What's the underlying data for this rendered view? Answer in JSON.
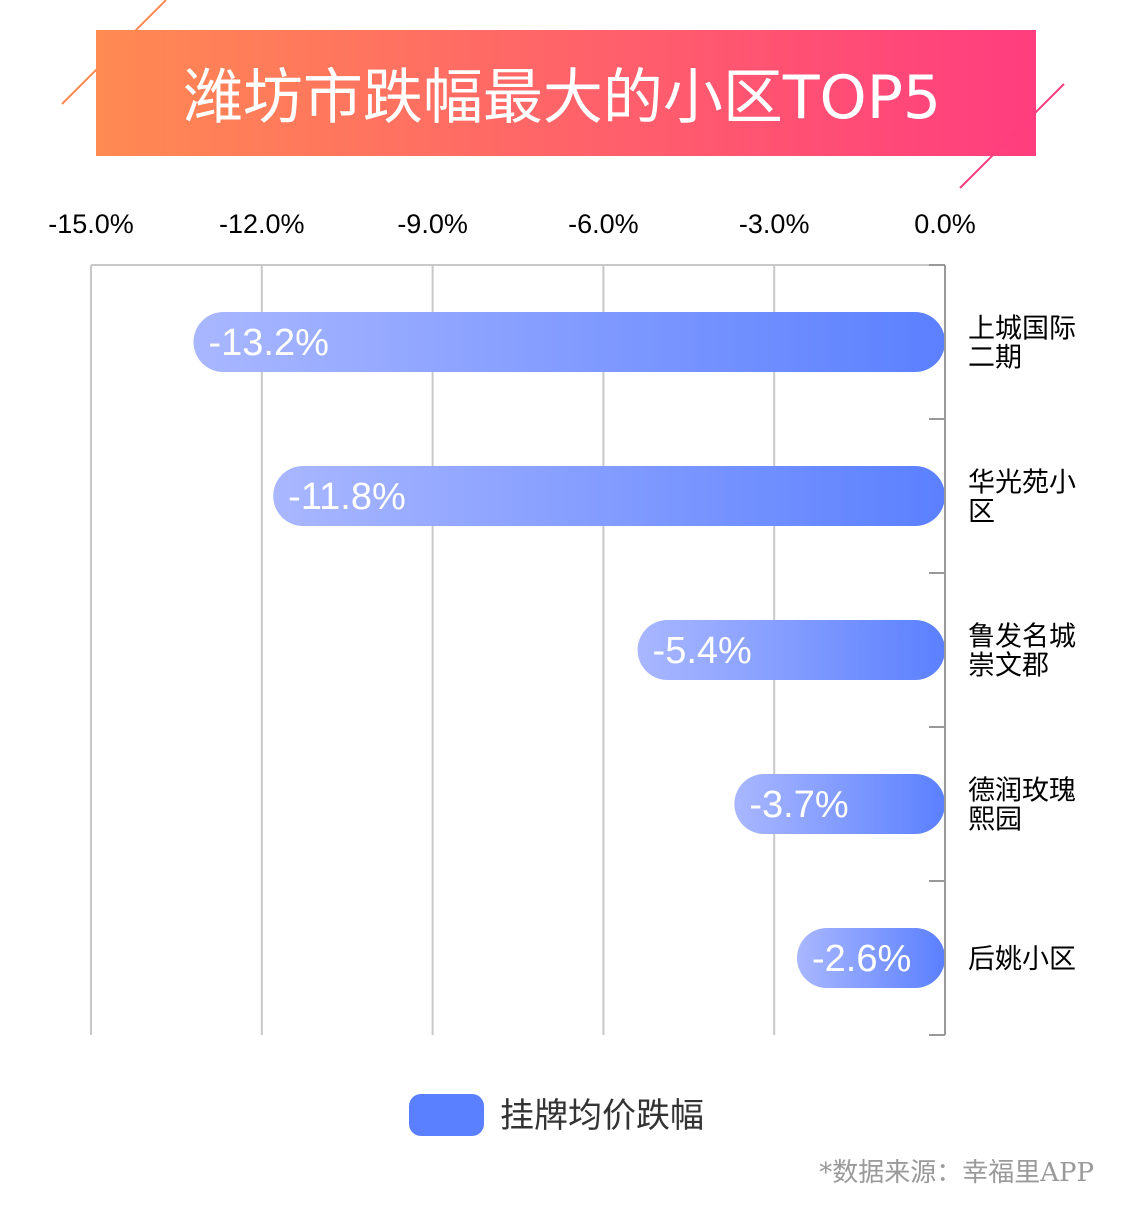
{
  "colors": {
    "title_gradient_start": "#ff8a52",
    "title_gradient_end": "#ff3d7f",
    "bar_gradient_start": "#a9b7ff",
    "bar_gradient_end": "#5b80ff",
    "legend_swatch": "#5b80ff",
    "grid": "#c8c8c8",
    "axis": "#999999"
  },
  "chart_data": {
    "type": "bar",
    "orientation": "horizontal",
    "title": "潍坊市跌幅最大的小区TOP5",
    "categories": [
      [
        "上城国际",
        "二期"
      ],
      [
        "华光苑小",
        "区"
      ],
      [
        "鲁发名城",
        "崇文郡"
      ],
      [
        "德润玫瑰",
        "熙园"
      ],
      [
        "后姚小区"
      ]
    ],
    "series": [
      {
        "name": "挂牌均价跌幅",
        "values": [
          -13.2,
          -11.8,
          -5.4,
          -3.7,
          -2.6
        ]
      }
    ],
    "value_labels": [
      "-13.2%",
      "-11.8%",
      "-5.4%",
      "-3.7%",
      "-2.6%"
    ],
    "xlim": [
      -15,
      0
    ],
    "x_ticks": [
      -15,
      -12,
      -9,
      -6,
      -3,
      0
    ],
    "x_tick_labels": [
      "-15.0%",
      "-12.0%",
      "-9.0%",
      "-6.0%",
      "-3.0%",
      "0.0%"
    ],
    "x_axis_position": "top",
    "category_axis_position": "right",
    "grid": true,
    "legend_position": "bottom-center"
  },
  "footer": {
    "source": "*数据来源：幸福里APP"
  }
}
